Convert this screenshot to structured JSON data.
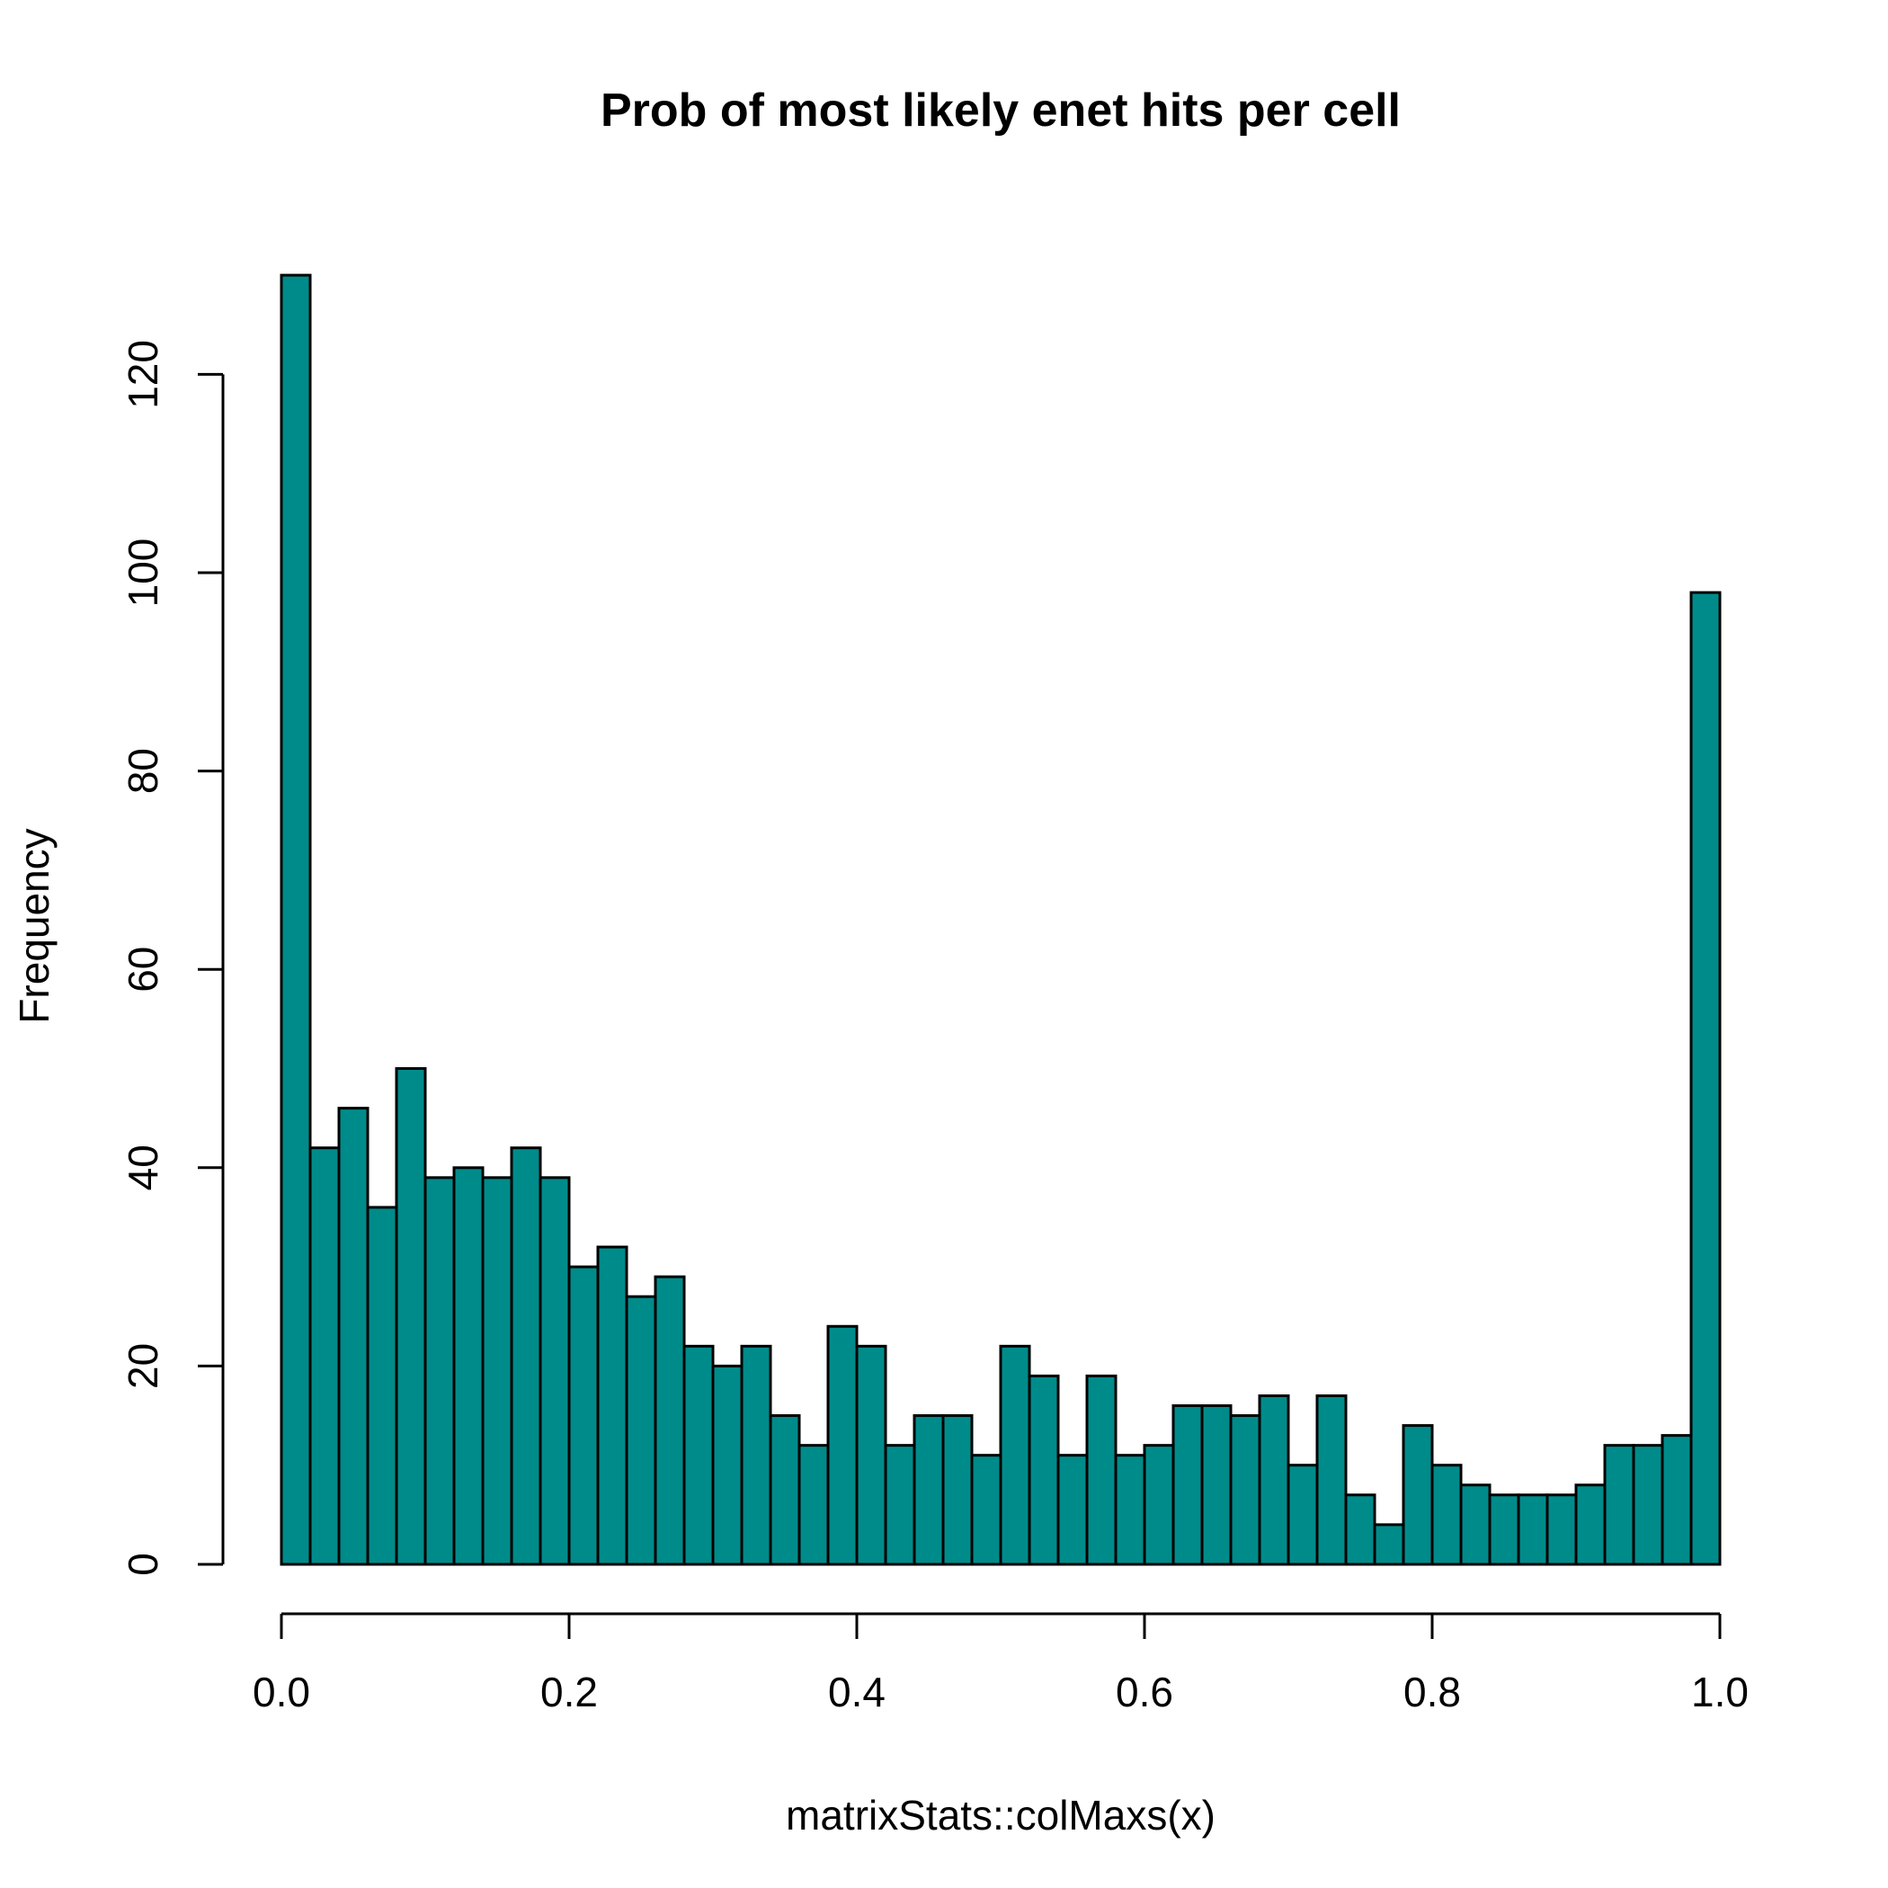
{
  "chart_data": {
    "type": "bar",
    "subtype": "histogram",
    "title": "Prob of most likely enet hits per cell",
    "xlabel": "matrixStats::colMaxs(x)",
    "ylabel": "Frequency",
    "bar_color": "#008B8B",
    "xlim": [
      0,
      1
    ],
    "ylim": [
      0,
      130
    ],
    "x_ticks": [
      0,
      0.2,
      0.4,
      0.6,
      0.8,
      1.0
    ],
    "x_tick_labels": [
      "0.0",
      "0.2",
      "0.4",
      "0.6",
      "0.8",
      "1.0"
    ],
    "y_ticks": [
      0,
      20,
      40,
      60,
      80,
      100,
      120
    ],
    "y_tick_labels": [
      "0",
      "20",
      "40",
      "60",
      "80",
      "100",
      "120"
    ],
    "bin_width": 0.02,
    "bin_starts": [
      0.0,
      0.02,
      0.04,
      0.06,
      0.08,
      0.1,
      0.12,
      0.14,
      0.16,
      0.18,
      0.2,
      0.22,
      0.24,
      0.26,
      0.28,
      0.3,
      0.32,
      0.34,
      0.36,
      0.38,
      0.4,
      0.42,
      0.44,
      0.46,
      0.48,
      0.5,
      0.52,
      0.54,
      0.56,
      0.58,
      0.6,
      0.62,
      0.64,
      0.66,
      0.68,
      0.7,
      0.72,
      0.74,
      0.76,
      0.78,
      0.8,
      0.82,
      0.84,
      0.86,
      0.88,
      0.9,
      0.92,
      0.94,
      0.96,
      0.98
    ],
    "values": [
      130,
      42,
      46,
      36,
      50,
      39,
      40,
      39,
      42,
      39,
      30,
      32,
      27,
      29,
      22,
      20,
      22,
      15,
      12,
      24,
      22,
      12,
      15,
      15,
      11,
      22,
      19,
      11,
      19,
      11,
      12,
      16,
      16,
      15,
      17,
      10,
      17,
      7,
      4,
      14,
      10,
      8,
      7,
      7,
      7,
      8,
      12,
      12,
      13,
      98
    ],
    "grid": false,
    "legend": false
  }
}
